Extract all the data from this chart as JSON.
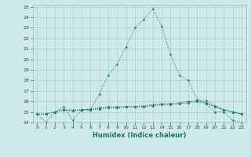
{
  "title": "",
  "xlabel": "Humidex (Indice chaleur)",
  "bg_color": "#ceeae8",
  "grid_color": "#aacfcd",
  "line_color": "#1a7a6e",
  "xlim": [
    -0.5,
    23.5
  ],
  "ylim": [
    14,
    25.2
  ],
  "xticks": [
    0,
    1,
    2,
    3,
    4,
    5,
    6,
    7,
    8,
    9,
    10,
    11,
    12,
    13,
    14,
    15,
    16,
    17,
    18,
    19,
    20,
    21,
    22,
    23
  ],
  "yticks": [
    14,
    15,
    16,
    17,
    18,
    19,
    20,
    21,
    22,
    23,
    24,
    25
  ],
  "series": [
    [
      14.8,
      14.0,
      15.0,
      15.5,
      14.2,
      15.2,
      15.2,
      16.7,
      18.5,
      19.5,
      21.2,
      23.0,
      23.8,
      24.8,
      23.2,
      20.5,
      18.5,
      18.0,
      16.2,
      15.8,
      15.0,
      15.0,
      14.2,
      14.0
    ],
    [
      14.8,
      14.8,
      15.0,
      15.2,
      15.2,
      15.2,
      15.3,
      15.4,
      15.5,
      15.5,
      15.5,
      15.5,
      15.6,
      15.7,
      15.8,
      15.8,
      15.9,
      16.0,
      16.0,
      15.8,
      15.5,
      15.2,
      15.0,
      14.8
    ],
    [
      14.8,
      14.8,
      15.0,
      15.2,
      15.1,
      15.2,
      15.2,
      15.3,
      15.4,
      15.4,
      15.5,
      15.5,
      15.5,
      15.6,
      15.7,
      15.7,
      15.8,
      15.9,
      16.0,
      15.9,
      15.5,
      15.2,
      15.0,
      14.8
    ],
    [
      14.8,
      14.8,
      15.0,
      15.2,
      15.1,
      15.2,
      15.2,
      15.3,
      15.4,
      15.4,
      15.5,
      15.5,
      15.5,
      15.6,
      15.7,
      15.7,
      15.8,
      15.9,
      16.1,
      16.1,
      15.6,
      15.2,
      15.0,
      14.8
    ]
  ]
}
